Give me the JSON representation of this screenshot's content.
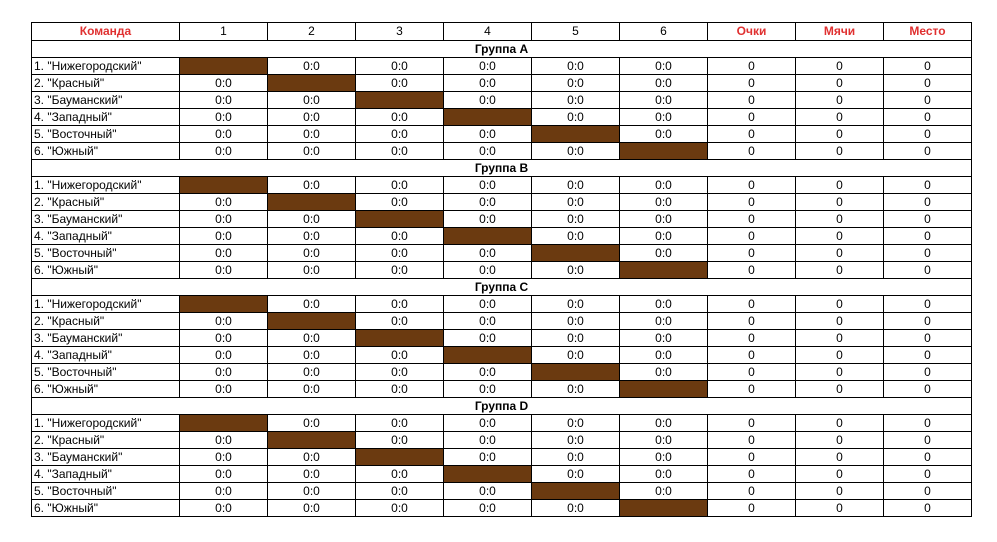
{
  "header": {
    "team": "Команда",
    "cols": [
      "1",
      "2",
      "3",
      "4",
      "5",
      "6"
    ],
    "points": "Очки",
    "balls": "Мячи",
    "place": "Место"
  },
  "colors": {
    "header_red": "#e03030",
    "diagonal_fill": "#6b3a10"
  },
  "groups": [
    {
      "title": "Группа A",
      "rows": [
        {
          "team": "1. \"Нижегородский\"",
          "scores": [
            null,
            "0:0",
            "0:0",
            "0:0",
            "0:0",
            "0:0"
          ],
          "points": "0",
          "balls": "0",
          "place": "0"
        },
        {
          "team": "2. \"Красный\"",
          "scores": [
            "0:0",
            null,
            "0:0",
            "0:0",
            "0:0",
            "0:0"
          ],
          "points": "0",
          "balls": "0",
          "place": "0"
        },
        {
          "team": "3. \"Бауманский\"",
          "scores": [
            "0:0",
            "0:0",
            null,
            "0:0",
            "0:0",
            "0:0"
          ],
          "points": "0",
          "balls": "0",
          "place": "0"
        },
        {
          "team": "4. \"Западный\"",
          "scores": [
            "0:0",
            "0:0",
            "0:0",
            null,
            "0:0",
            "0:0"
          ],
          "points": "0",
          "balls": "0",
          "place": "0"
        },
        {
          "team": "5. \"Восточный\"",
          "scores": [
            "0:0",
            "0:0",
            "0:0",
            "0:0",
            null,
            "0:0"
          ],
          "points": "0",
          "balls": "0",
          "place": "0"
        },
        {
          "team": "6. \"Южный\"",
          "scores": [
            "0:0",
            "0:0",
            "0:0",
            "0:0",
            "0:0",
            null
          ],
          "points": "0",
          "balls": "0",
          "place": "0"
        }
      ]
    },
    {
      "title": "Группа B",
      "rows": [
        {
          "team": "1. \"Нижегородский\"",
          "scores": [
            null,
            "0:0",
            "0:0",
            "0:0",
            "0:0",
            "0:0"
          ],
          "points": "0",
          "balls": "0",
          "place": "0"
        },
        {
          "team": "2. \"Красный\"",
          "scores": [
            "0:0",
            null,
            "0:0",
            "0:0",
            "0:0",
            "0:0"
          ],
          "points": "0",
          "balls": "0",
          "place": "0"
        },
        {
          "team": "3. \"Бауманский\"",
          "scores": [
            "0:0",
            "0:0",
            null,
            "0:0",
            "0:0",
            "0:0"
          ],
          "points": "0",
          "balls": "0",
          "place": "0"
        },
        {
          "team": "4. \"Западный\"",
          "scores": [
            "0:0",
            "0:0",
            "0:0",
            null,
            "0:0",
            "0:0"
          ],
          "points": "0",
          "balls": "0",
          "place": "0"
        },
        {
          "team": "5. \"Восточный\"",
          "scores": [
            "0:0",
            "0:0",
            "0:0",
            "0:0",
            null,
            "0:0"
          ],
          "points": "0",
          "balls": "0",
          "place": "0"
        },
        {
          "team": "6. \"Южный\"",
          "scores": [
            "0:0",
            "0:0",
            "0:0",
            "0:0",
            "0:0",
            null
          ],
          "points": "0",
          "balls": "0",
          "place": "0"
        }
      ]
    },
    {
      "title": "Группа C",
      "rows": [
        {
          "team": "1. \"Нижегородский\"",
          "scores": [
            null,
            "0:0",
            "0:0",
            "0:0",
            "0:0",
            "0:0"
          ],
          "points": "0",
          "balls": "0",
          "place": "0"
        },
        {
          "team": "2. \"Красный\"",
          "scores": [
            "0:0",
            null,
            "0:0",
            "0:0",
            "0:0",
            "0:0"
          ],
          "points": "0",
          "balls": "0",
          "place": "0"
        },
        {
          "team": "3. \"Бауманский\"",
          "scores": [
            "0:0",
            "0:0",
            null,
            "0:0",
            "0:0",
            "0:0"
          ],
          "points": "0",
          "balls": "0",
          "place": "0"
        },
        {
          "team": "4. \"Западный\"",
          "scores": [
            "0:0",
            "0:0",
            "0:0",
            null,
            "0:0",
            "0:0"
          ],
          "points": "0",
          "balls": "0",
          "place": "0"
        },
        {
          "team": "5. \"Восточный\"",
          "scores": [
            "0:0",
            "0:0",
            "0:0",
            "0:0",
            null,
            "0:0"
          ],
          "points": "0",
          "balls": "0",
          "place": "0"
        },
        {
          "team": "6. \"Южный\"",
          "scores": [
            "0:0",
            "0:0",
            "0:0",
            "0:0",
            "0:0",
            null
          ],
          "points": "0",
          "balls": "0",
          "place": "0"
        }
      ]
    },
    {
      "title": "Группа D",
      "rows": [
        {
          "team": "1. \"Нижегородский\"",
          "scores": [
            null,
            "0:0",
            "0:0",
            "0:0",
            "0:0",
            "0:0"
          ],
          "points": "0",
          "balls": "0",
          "place": "0"
        },
        {
          "team": "2. \"Красный\"",
          "scores": [
            "0:0",
            null,
            "0:0",
            "0:0",
            "0:0",
            "0:0"
          ],
          "points": "0",
          "balls": "0",
          "place": "0"
        },
        {
          "team": "3. \"Бауманский\"",
          "scores": [
            "0:0",
            "0:0",
            null,
            "0:0",
            "0:0",
            "0:0"
          ],
          "points": "0",
          "balls": "0",
          "place": "0"
        },
        {
          "team": "4. \"Западный\"",
          "scores": [
            "0:0",
            "0:0",
            "0:0",
            null,
            "0:0",
            "0:0"
          ],
          "points": "0",
          "balls": "0",
          "place": "0"
        },
        {
          "team": "5. \"Восточный\"",
          "scores": [
            "0:0",
            "0:0",
            "0:0",
            "0:0",
            null,
            "0:0"
          ],
          "points": "0",
          "balls": "0",
          "place": "0"
        },
        {
          "team": "6. \"Южный\"",
          "scores": [
            "0:0",
            "0:0",
            "0:0",
            "0:0",
            "0:0",
            null
          ],
          "points": "0",
          "balls": "0",
          "place": "0"
        }
      ]
    }
  ]
}
